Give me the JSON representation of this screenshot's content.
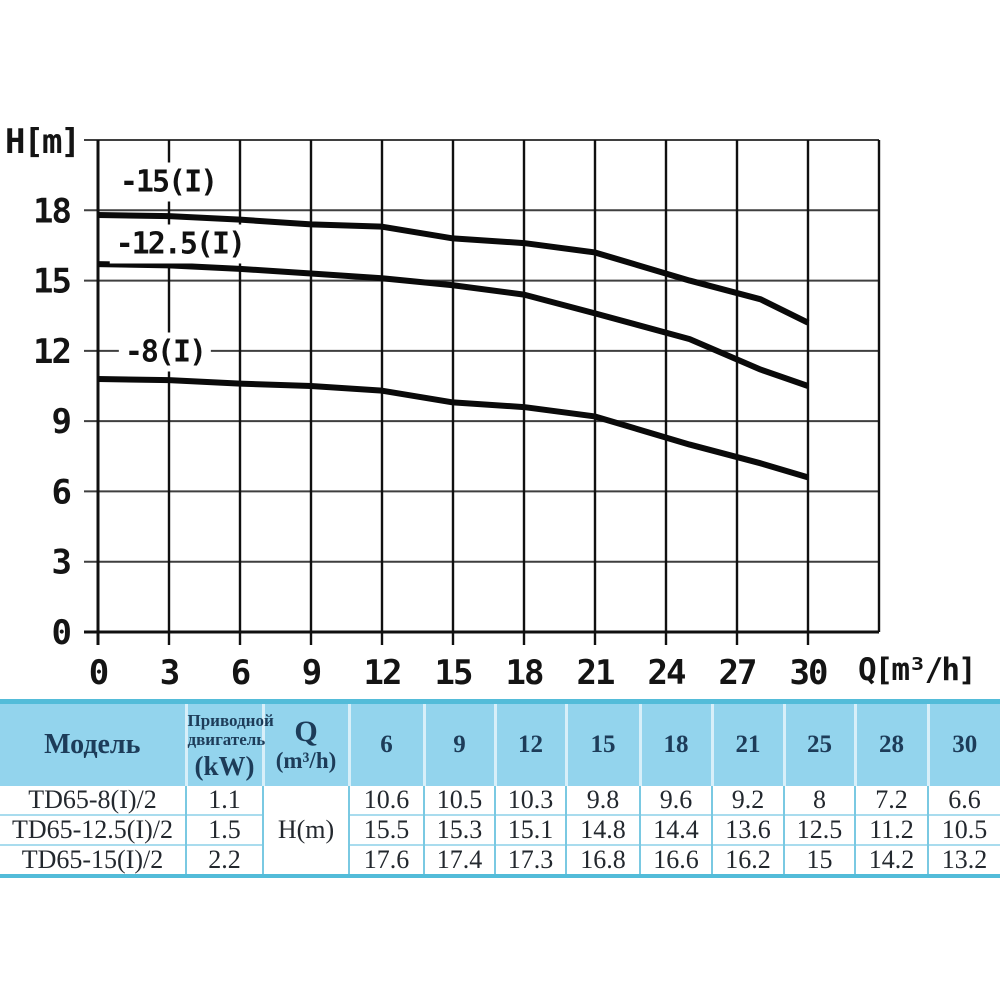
{
  "colors": {
    "accent-border": "#53bcd9",
    "header-bg": "#93d4ed",
    "header-text": "#1d3c59",
    "cell-text": "#23282e",
    "v-border": "#7ac9e2",
    "v-border-header": "#d8eff9",
    "row-sep": "#a9dcee",
    "grid-line": "#3f3f3f",
    "axis-line": "#101010",
    "curve": "#0a0a0a",
    "chart-text": "#141414"
  },
  "chart_data": {
    "type": "line",
    "title": "",
    "xlabel": "Q[m³/h]",
    "ylabel": "H[m]",
    "xlim": [
      0,
      33
    ],
    "ylim": [
      0,
      21
    ],
    "grid": true,
    "x_ticks": [
      0,
      3,
      6,
      9,
      12,
      15,
      18,
      21,
      24,
      27,
      30
    ],
    "y_ticks": [
      0,
      3,
      6,
      9,
      12,
      15,
      18
    ],
    "legend_position": "inline-labels",
    "series": [
      {
        "name": "-15(I)",
        "x": [
          0,
          3,
          6,
          9,
          12,
          15,
          18,
          21,
          25,
          28,
          30
        ],
        "y": [
          17.8,
          17.75,
          17.6,
          17.4,
          17.3,
          16.8,
          16.6,
          16.2,
          15,
          14.2,
          13.2
        ]
      },
      {
        "name": "-12.5(I)",
        "x": [
          0,
          3,
          6,
          9,
          12,
          15,
          18,
          21,
          25,
          28,
          30
        ],
        "y": [
          15.7,
          15.65,
          15.5,
          15.3,
          15.1,
          14.8,
          14.4,
          13.6,
          12.5,
          11.2,
          10.5
        ]
      },
      {
        "name": "-8(I)",
        "x": [
          0,
          3,
          6,
          9,
          12,
          15,
          18,
          21,
          25,
          28,
          30
        ],
        "y": [
          10.8,
          10.75,
          10.6,
          10.5,
          10.3,
          9.8,
          9.6,
          9.2,
          8,
          7.2,
          6.6
        ]
      }
    ],
    "labels": [
      {
        "text": "-15(I)",
        "q": 2.96,
        "h": 19.2
      },
      {
        "text": "-12.5(I)",
        "q": 3.46,
        "h": 16.56
      },
      {
        "text": "-8(I)",
        "q": 2.83,
        "h": 11.95
      }
    ]
  },
  "table": {
    "header": {
      "model": "Модель",
      "motor_line1": "Приводной",
      "motor_line2": "двигатель",
      "motor_unit": "(kW)",
      "q_label": "Q",
      "q_unit": "(m³/h)",
      "q_values": [
        "6",
        "9",
        "12",
        "15",
        "18",
        "21",
        "25",
        "28",
        "30"
      ]
    },
    "h_label": "H(m)",
    "rows": [
      {
        "model": "TD65-8(I)/2",
        "kw": "1.1",
        "values": [
          "10.6",
          "10.5",
          "10.3",
          "9.8",
          "9.6",
          "9.2",
          "8",
          "7.2",
          "6.6"
        ]
      },
      {
        "model": "TD65-12.5(I)/2",
        "kw": "1.5",
        "values": [
          "15.5",
          "15.3",
          "15.1",
          "14.8",
          "14.4",
          "13.6",
          "12.5",
          "11.2",
          "10.5"
        ]
      },
      {
        "model": "TD65-15(I)/2",
        "kw": "2.2",
        "values": [
          "17.6",
          "17.4",
          "17.3",
          "16.8",
          "16.6",
          "16.2",
          "15",
          "14.2",
          "13.2"
        ]
      }
    ]
  }
}
